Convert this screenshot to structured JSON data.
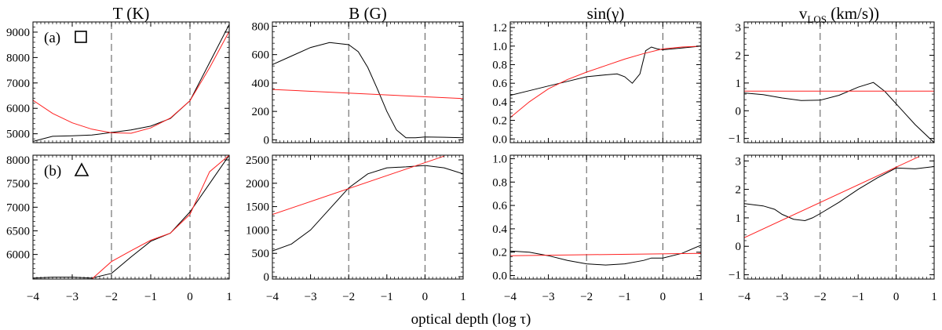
{
  "chart_data": {
    "type": "line",
    "xlabel": "optical depth (log τ)",
    "xlim": [
      -4,
      1
    ],
    "xticks": [
      -4,
      -3,
      -2,
      -1,
      0,
      1
    ],
    "x_tick_labels": [
      "−4",
      "−3",
      "−2",
      "−1",
      "0",
      "1"
    ],
    "vertical_dashed_lines_at": [
      -2,
      0
    ],
    "colors": {
      "observed": "#000000",
      "fit": "#ff2020",
      "dashed": "#555555"
    },
    "columns": [
      {
        "title_main": "T (K)",
        "title_sub": ""
      },
      {
        "title_main": "B (G)",
        "title_sub": ""
      },
      {
        "title_main": "sin(γ)",
        "title_sub": ""
      },
      {
        "title_main": "v",
        "title_sub": "LOS",
        "title_tail": " (km/s))"
      }
    ],
    "rows": [
      {
        "label": "(a)",
        "marker": "square"
      },
      {
        "label": "(b)",
        "marker": "triangle"
      }
    ],
    "panels": [
      {
        "row": 0,
        "col": 0,
        "variable": "T",
        "unit": "K",
        "ylim": [
          4650,
          9400
        ],
        "yticks": [
          5000,
          6000,
          7000,
          8000,
          9000
        ],
        "y_tick_labels": [
          "5000",
          "6000",
          "7000",
          "8000",
          "9000"
        ],
        "series": [
          {
            "name": "observed",
            "x": [
              -4,
              -3.5,
              -3,
              -2.5,
              -2,
              -1.5,
              -1,
              -0.5,
              0,
              0.5,
              1
            ],
            "y": [
              4700,
              4900,
              4920,
              4950,
              5050,
              5150,
              5300,
              5600,
              6300,
              7800,
              9300
            ]
          },
          {
            "name": "fit",
            "x": [
              -4,
              -3.5,
              -3,
              -2.5,
              -2,
              -1.5,
              -1,
              -0.5,
              0,
              0.5,
              1
            ],
            "y": [
              6320,
              5800,
              5430,
              5180,
              5040,
              5020,
              5230,
              5620,
              6300,
              7600,
              9030
            ]
          }
        ]
      },
      {
        "row": 0,
        "col": 1,
        "variable": "B",
        "unit": "G",
        "ylim": [
          -20,
          830
        ],
        "yticks": [
          0,
          200,
          400,
          600,
          800
        ],
        "y_tick_labels": [
          "0",
          "200",
          "400",
          "600",
          "800"
        ],
        "series": [
          {
            "name": "observed",
            "x": [
              -4,
              -3.5,
              -3,
              -2.5,
              -2,
              -1.75,
              -1.5,
              -1.25,
              -1,
              -0.75,
              -0.5,
              -0.25,
              0,
              0.5,
              1
            ],
            "y": [
              530,
              590,
              650,
              685,
              670,
              620,
              510,
              360,
              200,
              70,
              15,
              15,
              20,
              18,
              15
            ]
          },
          {
            "name": "fit",
            "x": [
              -4,
              1
            ],
            "y": [
              355,
              290
            ]
          }
        ]
      },
      {
        "row": 0,
        "col": 2,
        "variable": "sin(γ)",
        "unit": "",
        "ylim": [
          -0.04,
          1.26
        ],
        "yticks": [
          0,
          0.2,
          0.4,
          0.6,
          0.8,
          1.0,
          1.2
        ],
        "y_tick_labels": [
          "0.0",
          "0.2",
          "0.4",
          "0.6",
          "0.8",
          "1.0",
          "1.2"
        ],
        "series": [
          {
            "name": "observed",
            "x": [
              -4,
              -3.5,
              -3,
              -2.5,
              -2,
              -1.5,
              -1.2,
              -1,
              -0.8,
              -0.6,
              -0.45,
              -0.3,
              -0.15,
              0,
              0.5,
              1
            ],
            "y": [
              0.47,
              0.52,
              0.57,
              0.62,
              0.67,
              0.69,
              0.7,
              0.67,
              0.6,
              0.7,
              0.95,
              0.99,
              0.97,
              0.96,
              0.98,
              1.0
            ]
          },
          {
            "name": "fit",
            "x": [
              -4,
              -3.5,
              -3,
              -2.5,
              -2,
              -1.5,
              -1,
              -0.5,
              0,
              0.5,
              1
            ],
            "y": [
              0.23,
              0.4,
              0.54,
              0.64,
              0.72,
              0.79,
              0.86,
              0.92,
              0.97,
              0.99,
              1.0
            ]
          }
        ]
      },
      {
        "row": 0,
        "col": 3,
        "variable": "v_LOS",
        "unit": "km/s",
        "ylim": [
          -1.15,
          3.2
        ],
        "yticks": [
          -1,
          0,
          1,
          2,
          3
        ],
        "y_tick_labels": [
          "−1",
          "0",
          "1",
          "2",
          "3"
        ],
        "series": [
          {
            "name": "observed",
            "x": [
              -4,
              -3.5,
              -3,
              -2.5,
              -2,
              -1.5,
              -1,
              -0.6,
              -0.3,
              0,
              0.5,
              1
            ],
            "y": [
              0.64,
              0.58,
              0.46,
              0.37,
              0.38,
              0.56,
              0.85,
              1.02,
              0.7,
              0.25,
              -0.5,
              -1.15
            ]
          },
          {
            "name": "fit",
            "x": [
              -4,
              1
            ],
            "y": [
              0.71,
              0.71
            ]
          }
        ]
      },
      {
        "row": 1,
        "col": 0,
        "variable": "T",
        "unit": "K",
        "ylim": [
          5480,
          8100
        ],
        "yticks": [
          6000,
          6500,
          7000,
          7500,
          8000
        ],
        "y_tick_labels": [
          "6000",
          "6500",
          "7000",
          "7500",
          "8000"
        ],
        "series": [
          {
            "name": "observed",
            "x": [
              -4,
              -3.5,
              -3,
              -2.5,
              -2,
              -1.5,
              -1,
              -0.5,
              0,
              0.5,
              1
            ],
            "y": [
              5500,
              5520,
              5520,
              5500,
              5600,
              5950,
              6280,
              6450,
              6900,
              7500,
              8100
            ]
          },
          {
            "name": "fit",
            "x": [
              -2.5,
              -2,
              -1.5,
              -1,
              -0.5,
              0,
              0.5,
              1
            ],
            "y": [
              5480,
              5850,
              6080,
              6300,
              6450,
              6850,
              7750,
              8100
            ]
          }
        ]
      },
      {
        "row": 1,
        "col": 1,
        "variable": "B",
        "unit": "G",
        "ylim": [
          -50,
          2600
        ],
        "yticks": [
          0,
          500,
          1000,
          1500,
          2000,
          2500
        ],
        "y_tick_labels": [
          "0",
          "500",
          "1000",
          "1500",
          "2000",
          "2500"
        ],
        "series": [
          {
            "name": "observed",
            "x": [
              -4,
              -3.5,
              -3,
              -2.5,
              -2,
              -1.5,
              -1,
              -0.5,
              0,
              0.5,
              1
            ],
            "y": [
              550,
              700,
              1000,
              1450,
              1900,
              2200,
              2330,
              2350,
              2380,
              2330,
              2200
            ]
          },
          {
            "name": "fit",
            "x": [
              -4,
              0.5
            ],
            "y": [
              1330,
              2580
            ]
          }
        ]
      },
      {
        "row": 1,
        "col": 2,
        "variable": "sin(γ)",
        "unit": "",
        "ylim": [
          -0.03,
          1.03
        ],
        "yticks": [
          0,
          0.2,
          0.4,
          0.6,
          0.8,
          1.0
        ],
        "y_tick_labels": [
          "0.0",
          "0.2",
          "0.4",
          "0.6",
          "0.8",
          "1.0"
        ],
        "series": [
          {
            "name": "observed",
            "x": [
              -4,
              -3.5,
              -3,
              -2.5,
              -2,
              -1.5,
              -1,
              -0.5,
              -0.3,
              0,
              0.5,
              1
            ],
            "y": [
              0.21,
              0.2,
              0.17,
              0.13,
              0.1,
              0.09,
              0.1,
              0.13,
              0.15,
              0.15,
              0.19,
              0.26
            ]
          },
          {
            "name": "fit",
            "x": [
              -4,
              1
            ],
            "y": [
              0.17,
              0.19
            ]
          }
        ]
      },
      {
        "row": 1,
        "col": 3,
        "variable": "v_LOS",
        "unit": "km/s",
        "ylim": [
          -1.15,
          3.2
        ],
        "yticks": [
          -1,
          0,
          1,
          2,
          3
        ],
        "y_tick_labels": [
          "−1",
          "0",
          "1",
          "2",
          "3"
        ],
        "series": [
          {
            "name": "observed",
            "x": [
              -4,
              -3.5,
              -3.2,
              -3,
              -2.7,
              -2.4,
              -2.2,
              -2,
              -1.5,
              -1,
              -0.5,
              0,
              0.5,
              1
            ],
            "y": [
              1.5,
              1.42,
              1.3,
              1.12,
              0.95,
              0.9,
              1.0,
              1.15,
              1.55,
              2.0,
              2.4,
              2.75,
              2.72,
              2.8
            ]
          },
          {
            "name": "fit",
            "x": [
              -4,
              0.6
            ],
            "y": [
              0.3,
              3.15
            ]
          }
        ]
      }
    ]
  }
}
